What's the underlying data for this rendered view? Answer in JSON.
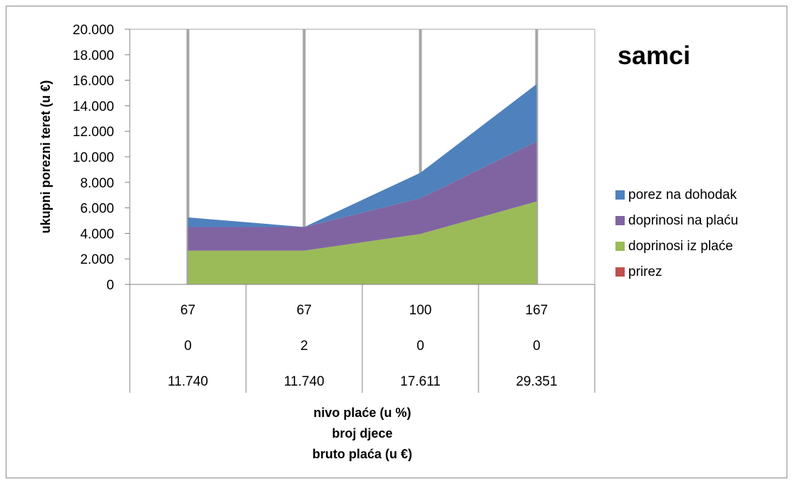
{
  "chart_data": {
    "type": "area",
    "stacked": true,
    "title": "samci",
    "ylabel": "ukupni porezni teret (u €)",
    "xlabel_lines": [
      "nivo plaće (u %)",
      "broj djece",
      "bruto plaća (u €)"
    ],
    "ylim": [
      0,
      20000
    ],
    "yticks": [
      "0",
      "2.000",
      "4.000",
      "6.000",
      "8.000",
      "10.000",
      "12.000",
      "14.000",
      "16.000",
      "18.000",
      "20.000"
    ],
    "category_rows": [
      [
        "67",
        "67",
        "100",
        "167"
      ],
      [
        "0",
        "2",
        "0",
        "0"
      ],
      [
        "11.740",
        "11.740",
        "17.611",
        "29.351"
      ]
    ],
    "series": [
      {
        "name": "prirez",
        "color": "#c0504d",
        "values": [
          0,
          0,
          0,
          0
        ]
      },
      {
        "name": "doprinosi iz plaće",
        "color": "#9bbb59",
        "values": [
          2650,
          2650,
          3950,
          6500
        ]
      },
      {
        "name": "doprinosi na plaću",
        "color": "#8064a2",
        "values": [
          1850,
          1850,
          2800,
          4700
        ]
      },
      {
        "name": "porez na dohodak",
        "color": "#4f81bd",
        "values": [
          750,
          0,
          2000,
          4500
        ]
      }
    ],
    "legend_order": [
      "porez na dohodak",
      "doprinosi na plaću",
      "doprinosi iz plaće",
      "prirez"
    ],
    "legend_position": "right",
    "grid": "vertical"
  }
}
